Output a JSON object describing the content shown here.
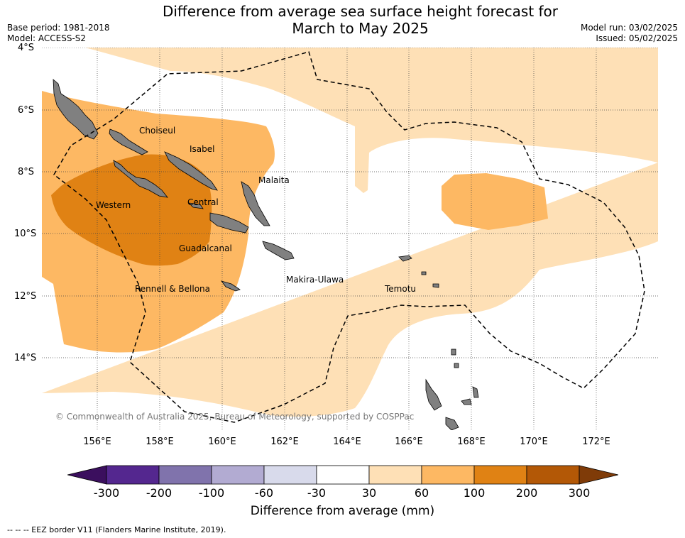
{
  "title_line1": "Difference from average sea surface height forecast for",
  "title_line2": "March to May 2025",
  "meta_left": {
    "base_period": "Base period: 1981-2018",
    "model": "Model: ACCESS-S2"
  },
  "meta_right": {
    "model_run": "Model run: 03/02/2025",
    "issued": "Issued: 05/02/2025"
  },
  "lat_labels": [
    "4°S",
    "6°S",
    "8°S",
    "10°S",
    "12°S",
    "14°S"
  ],
  "lon_labels": [
    "156°E",
    "158°E",
    "160°E",
    "162°E",
    "164°E",
    "166°E",
    "168°E",
    "170°E",
    "172°E"
  ],
  "places": {
    "choiseul": "Choiseul",
    "isabel": "Isabel",
    "malaita": "Malaita",
    "western": "Western",
    "central": "Central",
    "guadalcanal": "Guadalcanal",
    "makira_ulawa": "Makira-Ulawa",
    "temotu": "Temotu",
    "rennell_bellona": "Rennell & Bellona"
  },
  "copyright": "© Commonwealth of Australia 2025, Bureau of Meteorology, supported by COSPPac",
  "colorbar": {
    "title": "Difference from average (mm)",
    "ticks": [
      "-300",
      "-200",
      "-100",
      "-60",
      "-30",
      "30",
      "60",
      "100",
      "200",
      "300"
    ],
    "colors": [
      "#3b0f5e",
      "#54278f",
      "#8073ac",
      "#b2abd2",
      "#d8daeb",
      "#ffffff",
      "#fee0b6",
      "#fdb863",
      "#e08214",
      "#b35806",
      "#7f3b08"
    ]
  },
  "footer": "--  --  -- EEZ border V11 (Flanders Marine Institute, 2019)."
}
